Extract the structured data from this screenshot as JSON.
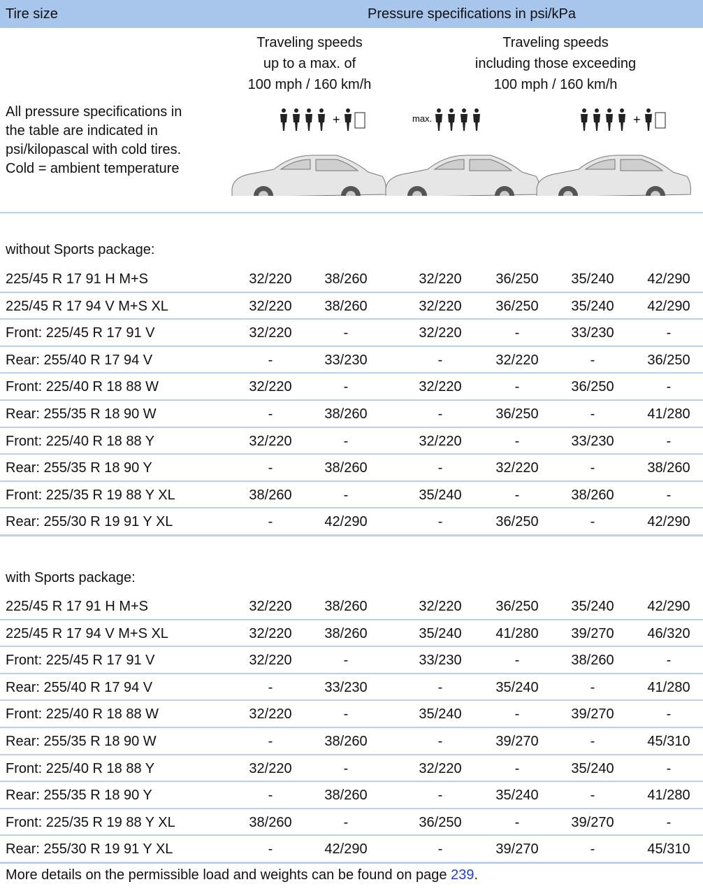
{
  "header": {
    "tire_size": "Tire size",
    "pressure": "Pressure specifications in psi/kPa"
  },
  "speed_groups": [
    {
      "lines": [
        "Traveling speeds",
        "up to a max. of",
        "100 mph / 160 km/h"
      ]
    },
    {
      "lines": [
        "Traveling speeds",
        "including those exceeding",
        "100 mph / 160 km/h"
      ]
    }
  ],
  "note": [
    "All pressure specifications in",
    "the table are indicated in",
    "psi/kilopascal with cold tires.",
    "Cold = ambient temperature"
  ],
  "icons": {
    "max_label": "max."
  },
  "sections": [
    {
      "title": "without Sports package:",
      "rows": [
        [
          "225/45 R 17 91 H M+S",
          "32/220",
          "38/260",
          "32/220",
          "36/250",
          "35/240",
          "42/290"
        ],
        [
          "225/45 R 17 94 V M+S XL",
          "32/220",
          "38/260",
          "32/220",
          "36/250",
          "35/240",
          "42/290"
        ],
        [
          "Front: 225/45 R 17 91 V",
          "32/220",
          "-",
          "32/220",
          "-",
          "33/230",
          "-"
        ],
        [
          "Rear: 255/40 R 17 94 V",
          "-",
          "33/230",
          "-",
          "32/220",
          "-",
          "36/250"
        ],
        [
          "Front: 225/40 R 18 88 W",
          "32/220",
          "-",
          "32/220",
          "-",
          "36/250",
          "-"
        ],
        [
          "Rear: 255/35 R 18 90 W",
          "-",
          "38/260",
          "-",
          "36/250",
          "-",
          "41/280"
        ],
        [
          "Front: 225/40 R 18 88 Y",
          "32/220",
          "-",
          "32/220",
          "-",
          "33/230",
          "-"
        ],
        [
          "Rear: 255/35 R 18 90 Y",
          "-",
          "38/260",
          "-",
          "32/220",
          "-",
          "38/260"
        ],
        [
          "Front: 225/35 R 19 88 Y XL",
          "38/260",
          "-",
          "35/240",
          "-",
          "38/260",
          "-"
        ],
        [
          "Rear: 255/30 R 19 91 Y XL",
          "-",
          "42/290",
          "-",
          "36/250",
          "-",
          "42/290"
        ]
      ]
    },
    {
      "title": "with Sports package:",
      "rows": [
        [
          "225/45 R 17 91 H M+S",
          "32/220",
          "38/260",
          "32/220",
          "36/250",
          "35/240",
          "42/290"
        ],
        [
          "225/45 R 17 94 V M+S XL",
          "32/220",
          "38/260",
          "35/240",
          "41/280",
          "39/270",
          "46/320"
        ],
        [
          "Front: 225/45 R 17 91 V",
          "32/220",
          "-",
          "33/230",
          "-",
          "38/260",
          "-"
        ],
        [
          "Rear: 255/40 R 17 94 V",
          "-",
          "33/230",
          "-",
          "35/240",
          "-",
          "41/280"
        ],
        [
          "Front: 225/40 R 18 88 W",
          "32/220",
          "-",
          "35/240",
          "-",
          "39/270",
          "-"
        ],
        [
          "Rear: 255/35 R 18 90 W",
          "-",
          "38/260",
          "-",
          "39/270",
          "-",
          "45/310"
        ],
        [
          "Front: 225/40 R 18 88 Y",
          "32/220",
          "-",
          "32/220",
          "-",
          "35/240",
          "-"
        ],
        [
          "Rear: 255/35 R 18 90 Y",
          "-",
          "38/260",
          "-",
          "35/240",
          "-",
          "41/280"
        ],
        [
          "Front: 225/35 R 19 88 Y XL",
          "38/260",
          "-",
          "36/250",
          "-",
          "39/270",
          "-"
        ],
        [
          "Rear: 255/30 R 19 91 Y XL",
          "-",
          "42/290",
          "-",
          "39/270",
          "-",
          "45/310"
        ]
      ]
    }
  ],
  "footer": {
    "text": "More details on the permissible load and weights can be found on page ",
    "link": "239",
    "end": "."
  }
}
